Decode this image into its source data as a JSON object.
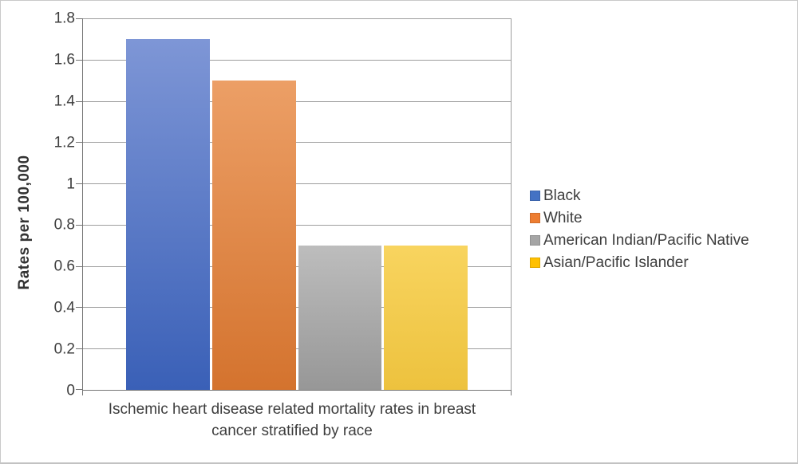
{
  "chart_data": {
    "type": "bar",
    "title": "",
    "xlabel": "Ischemic heart disease related mortality rates in breast cancer stratified by race",
    "ylabel": "Rates per 100,000",
    "ylim": [
      0,
      1.8
    ],
    "ytick_interval": 0.2,
    "grid": true,
    "legend_position": "right",
    "categories": [
      "Ischemic heart disease related mortality rates in breast cancer stratified by race"
    ],
    "yticks": [
      {
        "value": 0,
        "label": "0"
      },
      {
        "value": 0.2,
        "label": "0.2"
      },
      {
        "value": 0.4,
        "label": "0.4"
      },
      {
        "value": 0.6,
        "label": "0.6"
      },
      {
        "value": 0.8,
        "label": "0.8"
      },
      {
        "value": 1,
        "label": "1"
      },
      {
        "value": 1.2,
        "label": "1.2"
      },
      {
        "value": 1.4,
        "label": "1.4"
      },
      {
        "value": 1.6,
        "label": "1.6"
      },
      {
        "value": 1.8,
        "label": "1.8"
      }
    ],
    "series": [
      {
        "name": "Black",
        "values": [
          1.7
        ],
        "legend_color": "#4472C4",
        "gradient_top": "#7E96D6",
        "gradient_bottom": "#3A60B7"
      },
      {
        "name": "White",
        "values": [
          1.5
        ],
        "legend_color": "#ED7D31",
        "gradient_top": "#EC9F66",
        "gradient_bottom": "#D4732E"
      },
      {
        "name": "American Indian/Pacific Native",
        "values": [
          0.7
        ],
        "legend_color": "#A5A5A5",
        "gradient_top": "#BDBDBD",
        "gradient_bottom": "#979797"
      },
      {
        "name": "Asian/Pacific Islander",
        "values": [
          0.7
        ],
        "legend_color": "#FFC000",
        "gradient_top": "#F8D45F",
        "gradient_bottom": "#EDC23E"
      }
    ]
  }
}
